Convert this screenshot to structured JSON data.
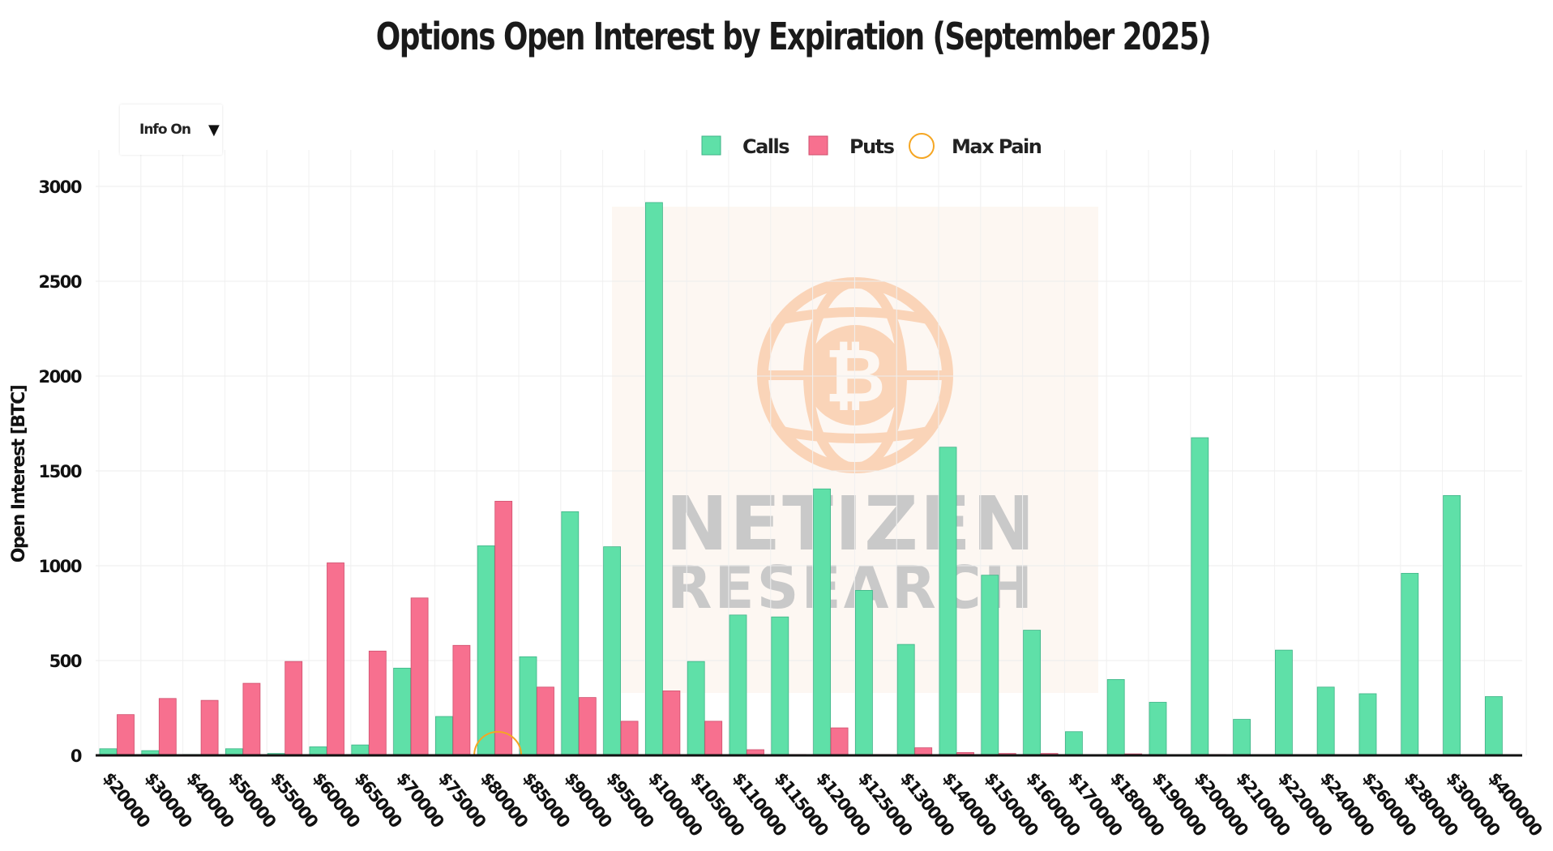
{
  "chart_data": {
    "type": "bar",
    "title": "Options Open Interest by Expiration (September 2025)",
    "xlabel": "",
    "ylabel": "Open Interest [BTC]",
    "ylim": [
      0,
      3000
    ],
    "yticks": [
      0,
      500,
      1000,
      1500,
      2000,
      2500,
      3000
    ],
    "grid": true,
    "legend_position": "top-center",
    "categories": [
      "$20000",
      "$30000",
      "$40000",
      "$50000",
      "$55000",
      "$60000",
      "$65000",
      "$70000",
      "$75000",
      "$80000",
      "$85000",
      "$90000",
      "$95000",
      "$100000",
      "$105000",
      "$110000",
      "$115000",
      "$120000",
      "$125000",
      "$130000",
      "$140000",
      "$150000",
      "$160000",
      "$170000",
      "$180000",
      "$190000",
      "$200000",
      "$210000",
      "$220000",
      "$240000",
      "$260000",
      "$280000",
      "$300000",
      "$400000"
    ],
    "series": [
      {
        "name": "Calls",
        "color": "#5fe0a8",
        "values": [
          35,
          25,
          5,
          35,
          10,
          45,
          55,
          460,
          205,
          1105,
          520,
          1285,
          1100,
          2915,
          495,
          740,
          730,
          1405,
          870,
          585,
          1625,
          950,
          660,
          125,
          400,
          280,
          1675,
          190,
          555,
          360,
          325,
          960,
          1370,
          310
        ]
      },
      {
        "name": "Puts",
        "color": "#f7708f",
        "values": [
          215,
          300,
          290,
          380,
          495,
          1015,
          550,
          830,
          580,
          1340,
          360,
          305,
          180,
          340,
          180,
          30,
          5,
          145,
          5,
          40,
          15,
          10,
          10,
          3,
          8,
          3,
          5,
          3,
          2,
          2,
          2,
          2,
          2,
          2
        ]
      }
    ],
    "max_pain": {
      "label": "Max Pain",
      "strike": "$80000",
      "color": "#f5a623"
    }
  },
  "controls": {
    "info_toggle_label": "Info On",
    "info_toggle_icon": "caret-down-icon"
  },
  "watermark": {
    "line1": "NETIZEN",
    "line2": "RESEARCH",
    "logo": "bitcoin-globe-icon"
  }
}
